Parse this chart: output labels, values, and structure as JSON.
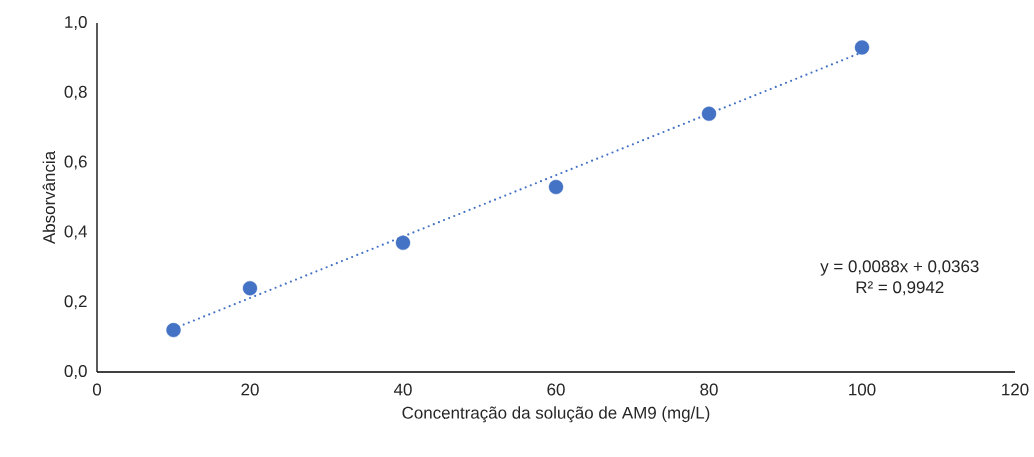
{
  "chart_data": {
    "type": "scatter",
    "xlabel": "Concentração da solução de AM9 (mg/L)",
    "ylabel": "Absorvância",
    "xlim": [
      0,
      120
    ],
    "ylim": [
      0,
      1
    ],
    "xticks": [
      0,
      20,
      40,
      60,
      80,
      100,
      120
    ],
    "yticks": [
      {
        "value": 0,
        "label": "0,0"
      },
      {
        "value": 0.2,
        "label": "0,2"
      },
      {
        "value": 0.4,
        "label": "0,4"
      },
      {
        "value": 0.6,
        "label": "0,6"
      },
      {
        "value": 0.8,
        "label": "0,8"
      },
      {
        "value": 1,
        "label": "1,0"
      }
    ],
    "grid": false,
    "series": [
      {
        "color": "#4472c4",
        "marker": "circle",
        "x": [
          10,
          20,
          40,
          60,
          80,
          100
        ],
        "values": [
          0.12,
          0.24,
          0.37,
          0.53,
          0.74,
          0.93
        ]
      },
      {
        "type": "line",
        "color": "#4472c4",
        "marker": "none",
        "line_style": "dotted",
        "x": [
          10,
          100
        ],
        "values": [
          0.124,
          0.916
        ]
      }
    ],
    "annotations": [
      "y = 0,0088x + 0,0363",
      "R² = 0,9942"
    ]
  }
}
